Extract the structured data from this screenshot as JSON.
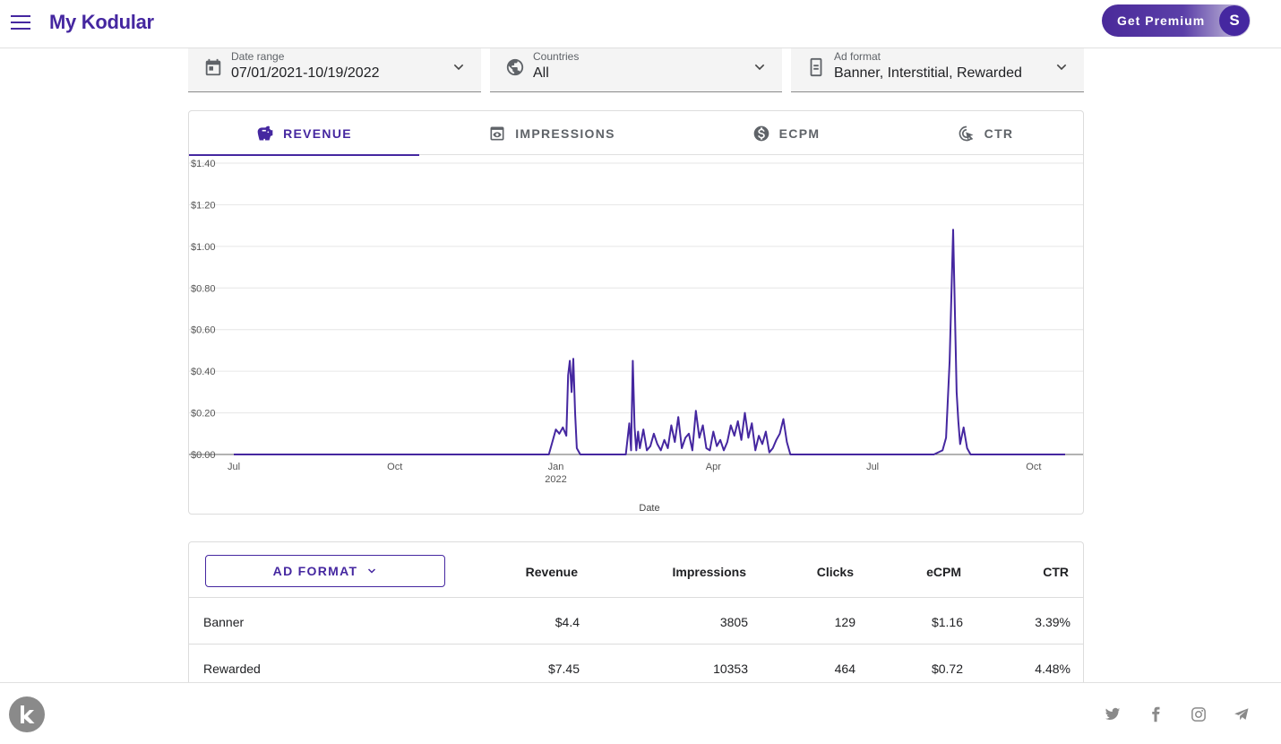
{
  "header": {
    "brand": "My Kodular",
    "premium_label": "Get Premium",
    "avatar_initial": "S"
  },
  "filters": [
    {
      "label": "Date range",
      "value": "07/01/2021-10/19/2022",
      "icon": "calendar-icon"
    },
    {
      "label": "Countries",
      "value": "All",
      "icon": "globe-icon"
    },
    {
      "label": "Ad format",
      "value": "Banner, Interstitial, Rewarded",
      "icon": "ad-format-icon"
    }
  ],
  "tabs": [
    {
      "label": "REVENUE",
      "icon": "piggy-bank-icon",
      "active": true
    },
    {
      "label": "IMPRESSIONS",
      "icon": "eye-icon",
      "active": false
    },
    {
      "label": "ECPM",
      "icon": "dollar-circle-icon",
      "active": false
    },
    {
      "label": "CTR",
      "icon": "cursor-click-icon",
      "active": false
    }
  ],
  "chart_data": {
    "type": "line",
    "xlabel": "Date",
    "ylabel": "",
    "ylim": [
      0,
      1.4
    ],
    "y_ticks": [
      "$0.00",
      "$0.20",
      "$0.40",
      "$0.60",
      "$0.80",
      "$1.00",
      "$1.20",
      "$1.40"
    ],
    "x_ticks": [
      "Jul",
      "Oct",
      "Jan",
      "Apr",
      "Jul",
      "Oct"
    ],
    "x_tick_year": "2022",
    "x_range": [
      "2021-07-01",
      "2022-10-19"
    ],
    "color": "#4527a0",
    "series": [
      {
        "x": [
          "2021-07-01",
          "2021-12-28",
          "2022-01-01",
          "2022-01-03",
          "2022-01-05",
          "2022-01-07",
          "2022-01-08",
          "2022-01-09",
          "2022-01-10",
          "2022-01-11",
          "2022-01-12",
          "2022-01-13",
          "2022-01-15",
          "2022-01-17",
          "2022-01-19",
          "2022-02-10",
          "2022-02-12",
          "2022-02-13",
          "2022-02-14",
          "2022-02-15",
          "2022-02-16",
          "2022-02-17",
          "2022-02-18",
          "2022-02-20",
          "2022-02-22",
          "2022-02-24",
          "2022-02-26",
          "2022-02-28",
          "2022-03-02",
          "2022-03-04",
          "2022-03-06",
          "2022-03-08",
          "2022-03-10",
          "2022-03-12",
          "2022-03-14",
          "2022-03-16",
          "2022-03-18",
          "2022-03-20",
          "2022-03-22",
          "2022-03-24",
          "2022-03-26",
          "2022-03-28",
          "2022-03-30",
          "2022-04-01",
          "2022-04-03",
          "2022-04-05",
          "2022-04-07",
          "2022-04-09",
          "2022-04-11",
          "2022-04-13",
          "2022-04-15",
          "2022-04-17",
          "2022-04-19",
          "2022-04-21",
          "2022-04-23",
          "2022-04-25",
          "2022-04-27",
          "2022-04-29",
          "2022-05-01",
          "2022-05-03",
          "2022-05-05",
          "2022-05-07",
          "2022-05-09",
          "2022-05-11",
          "2022-05-13",
          "2022-05-15",
          "2022-06-01",
          "2022-06-20",
          "2022-07-10",
          "2022-08-05",
          "2022-08-10",
          "2022-08-12",
          "2022-08-14",
          "2022-08-16",
          "2022-08-18",
          "2022-08-19",
          "2022-08-20",
          "2022-08-22",
          "2022-08-24",
          "2022-08-26",
          "2022-09-15",
          "2022-10-19"
        ],
        "y": [
          0,
          0,
          0.12,
          0.1,
          0.13,
          0.09,
          0.38,
          0.45,
          0.3,
          0.46,
          0.2,
          0.03,
          0,
          0,
          0,
          0,
          0.15,
          0.02,
          0.45,
          0.13,
          0.02,
          0.11,
          0.03,
          0.12,
          0.02,
          0.04,
          0.1,
          0.05,
          0.02,
          0.07,
          0.03,
          0.14,
          0.06,
          0.18,
          0.03,
          0.08,
          0.1,
          0.02,
          0.21,
          0.08,
          0.14,
          0.03,
          0.02,
          0.11,
          0.04,
          0.07,
          0.02,
          0.06,
          0.14,
          0.09,
          0.16,
          0.07,
          0.2,
          0.08,
          0.15,
          0.02,
          0.09,
          0.05,
          0.11,
          0.01,
          0.03,
          0.07,
          0.1,
          0.17,
          0.06,
          0,
          0,
          0,
          0,
          0,
          0.02,
          0.08,
          0.45,
          1.08,
          0.3,
          0.16,
          0.05,
          0.13,
          0.03,
          0,
          0,
          0
        ]
      }
    ]
  },
  "table": {
    "button_label": "AD FORMAT",
    "columns": [
      "Revenue",
      "Impressions",
      "Clicks",
      "eCPM",
      "CTR"
    ],
    "rows": [
      {
        "name": "Banner",
        "cells": [
          "$4.4",
          "3805",
          "129",
          "$1.16",
          "3.39%"
        ]
      },
      {
        "name": "Rewarded",
        "cells": [
          "$7.45",
          "10353",
          "464",
          "$0.72",
          "4.48%"
        ]
      }
    ]
  }
}
